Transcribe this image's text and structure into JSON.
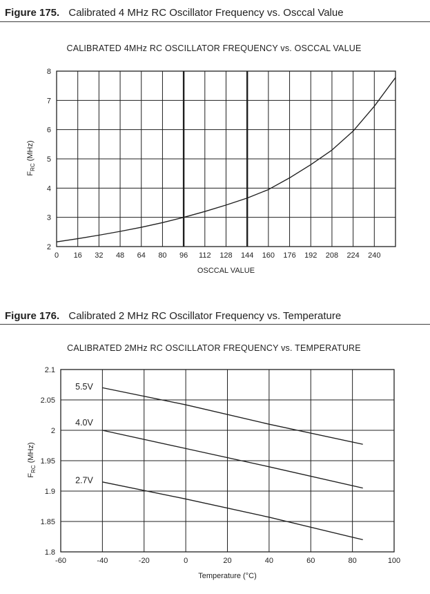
{
  "page": {
    "background": "#ffffff",
    "ink": "#1f1f1f"
  },
  "figures": [
    {
      "label": "Figure 175.",
      "caption": "Calibrated 4 MHz RC Oscillator Frequency vs. Osccal Value"
    },
    {
      "label": "Figure 176.",
      "caption": "Calibrated 2 MHz RC Oscillator Frequency vs. Temperature"
    }
  ],
  "chart_data": [
    {
      "type": "line",
      "title": "CALIBRATED 4MHz RC OSCILLATOR FREQUENCY vs. OSCCAL VALUE",
      "xlabel": "OSCCAL VALUE",
      "ylabel": {
        "main": "F",
        "sub": "RC",
        "rest": " (MHz)"
      },
      "xlim": [
        0,
        256
      ],
      "ylim": [
        2,
        8
      ],
      "grid": true,
      "legend_position": "none",
      "xticks": [
        0,
        16,
        32,
        48,
        64,
        80,
        96,
        112,
        128,
        144,
        160,
        176,
        192,
        208,
        224,
        240
      ],
      "yticks": [
        2,
        3,
        4,
        5,
        6,
        7,
        8
      ],
      "ytick_labels": [
        "2",
        "3",
        "4",
        "5",
        "6",
        "7",
        "8"
      ],
      "emphasized_xgrid": [
        96,
        144
      ],
      "series": [
        {
          "name": "frc-vs-osccal",
          "x": [
            0,
            16,
            32,
            48,
            64,
            80,
            96,
            112,
            128,
            144,
            160,
            176,
            192,
            208,
            224,
            240,
            256
          ],
          "y": [
            2.16,
            2.27,
            2.39,
            2.52,
            2.66,
            2.82,
            3.0,
            3.2,
            3.42,
            3.66,
            3.95,
            4.35,
            4.8,
            5.3,
            5.95,
            6.8,
            7.78
          ]
        }
      ]
    },
    {
      "type": "line",
      "title": "CALIBRATED 2MHz RC OSCILLATOR FREQUENCY vs. TEMPERATURE",
      "xlabel": "Temperature (°C)",
      "ylabel": {
        "main": "F",
        "sub": "RC",
        "rest": " (MHz)"
      },
      "xlim": [
        -60,
        100
      ],
      "ylim": [
        1.8,
        2.1
      ],
      "grid": true,
      "legend_position": "inline-labels",
      "xticks": [
        -60,
        -40,
        -20,
        0,
        20,
        40,
        60,
        80,
        100
      ],
      "yticks": [
        1.8,
        1.85,
        1.9,
        1.95,
        2,
        2.05,
        2.1
      ],
      "ytick_labels": [
        "1.8",
        "1.85",
        "1.9",
        "1.95",
        "2",
        "2.05",
        "2.1"
      ],
      "emphasized_xgrid": [],
      "series": [
        {
          "name": "5.5V",
          "label": "5.5V",
          "x": [
            -40,
            0,
            40,
            85
          ],
          "y": [
            2.07,
            2.042,
            2.01,
            1.977
          ],
          "label_at": {
            "x": -53,
            "y": 2.072
          }
        },
        {
          "name": "4.0V",
          "label": "4.0V",
          "x": [
            -40,
            0,
            40,
            85
          ],
          "y": [
            2.0,
            1.97,
            1.94,
            1.905
          ],
          "label_at": {
            "x": -53,
            "y": 2.013
          }
        },
        {
          "name": "2.7V",
          "label": "2.7V",
          "x": [
            -40,
            0,
            40,
            85
          ],
          "y": [
            1.915,
            1.887,
            1.857,
            1.82
          ],
          "label_at": {
            "x": -53,
            "y": 1.918
          }
        }
      ]
    }
  ]
}
